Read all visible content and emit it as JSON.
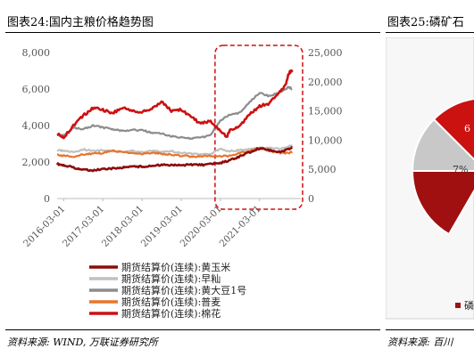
{
  "left_panel": {
    "title": "图表24:国内主粮价格趋势图",
    "source": "资料来源: WIND, 万联证券研究所"
  },
  "right_panel": {
    "title": "图表25:磷矿石",
    "source": "资料来源: 百川",
    "pie_labels": [
      "6",
      "7%"
    ],
    "legend_text": "磷"
  },
  "colors": {
    "corn": "#8b0d0d",
    "rice": "#c0c0c0",
    "soy": "#8c8c8c",
    "wheat": "#e8742c",
    "cotton": "#cc1111",
    "highlight": "#cc1111",
    "pie_dark": "#a01010",
    "pie_red": "#cc1111",
    "pie_gray": "#c8c8c8"
  },
  "chart_data": {
    "type": "line",
    "title": "",
    "y_left": {
      "min": 0,
      "max": 8000,
      "ticks": [
        "0",
        "2,000",
        "4,000",
        "6,000",
        "8,000"
      ]
    },
    "y_right": {
      "min": 0,
      "max": 25000,
      "ticks": [
        "0",
        "5,000",
        "10,000",
        "15,000",
        "20,000",
        "25,000"
      ]
    },
    "x_ticks": [
      "2016-03-01",
      "2017-03-01",
      "2018-03-01",
      "2019-03-01",
      "2020-03-01",
      "2021-03-01"
    ],
    "x_range": [
      "2016-01-01",
      "2022-01-31"
    ],
    "highlight_range": [
      "2020-03-01",
      "2022-01-31"
    ],
    "series": [
      {
        "name": "期货结算价(连续):黄玉米",
        "axis": "left",
        "color_key": "corn",
        "points": [
          [
            "2016-01",
            1900
          ],
          [
            "2016-03",
            1820
          ],
          [
            "2016-06",
            1700
          ],
          [
            "2016-09",
            1580
          ],
          [
            "2016-12",
            1550
          ],
          [
            "2017-03",
            1600
          ],
          [
            "2017-06",
            1650
          ],
          [
            "2017-09",
            1700
          ],
          [
            "2017-12",
            1760
          ],
          [
            "2018-03",
            1740
          ],
          [
            "2018-06",
            1780
          ],
          [
            "2018-09",
            1850
          ],
          [
            "2018-12",
            1830
          ],
          [
            "2019-03",
            1820
          ],
          [
            "2019-06",
            1870
          ],
          [
            "2019-09",
            1840
          ],
          [
            "2019-12",
            1880
          ],
          [
            "2020-03",
            1950
          ],
          [
            "2020-06",
            2100
          ],
          [
            "2020-09",
            2300
          ],
          [
            "2020-12",
            2550
          ],
          [
            "2021-03",
            2750
          ],
          [
            "2021-06",
            2650
          ],
          [
            "2021-09",
            2550
          ],
          [
            "2021-12",
            2700
          ],
          [
            "2022-01",
            2800
          ]
        ]
      },
      {
        "name": "期货结算价(连续):早籼",
        "axis": "left",
        "color_key": "rice",
        "points": [
          [
            "2016-01",
            2650
          ],
          [
            "2016-03",
            2600
          ],
          [
            "2016-06",
            2550
          ],
          [
            "2016-09",
            2700
          ],
          [
            "2016-12",
            2600
          ],
          [
            "2017-03",
            2650
          ],
          [
            "2017-06",
            2600
          ],
          [
            "2017-09",
            2550
          ],
          [
            "2017-12",
            2600
          ],
          [
            "2018-03",
            2550
          ],
          [
            "2018-06",
            2600
          ],
          [
            "2018-09",
            2550
          ],
          [
            "2018-12",
            2600
          ],
          [
            "2019-03",
            2500
          ],
          [
            "2019-06",
            2450
          ],
          [
            "2019-09",
            2400
          ],
          [
            "2019-12",
            2450
          ],
          [
            "2020-03",
            2700
          ],
          [
            "2020-06",
            2600
          ],
          [
            "2020-09",
            2650
          ],
          [
            "2020-12",
            2700
          ],
          [
            "2021-03",
            2750
          ],
          [
            "2021-06",
            2800
          ],
          [
            "2021-09",
            2700
          ],
          [
            "2021-12",
            2850
          ],
          [
            "2022-01",
            2900
          ]
        ]
      },
      {
        "name": "期货结算价(连续):黄大豆1号",
        "axis": "left",
        "color_key": "soy",
        "points": [
          [
            "2016-01",
            3500
          ],
          [
            "2016-03",
            3450
          ],
          [
            "2016-06",
            3900
          ],
          [
            "2016-09",
            3800
          ],
          [
            "2016-12",
            4000
          ],
          [
            "2017-03",
            3900
          ],
          [
            "2017-06",
            3800
          ],
          [
            "2017-09",
            3700
          ],
          [
            "2017-12",
            3750
          ],
          [
            "2018-03",
            3750
          ],
          [
            "2018-06",
            3600
          ],
          [
            "2018-09",
            3550
          ],
          [
            "2018-12",
            3400
          ],
          [
            "2019-03",
            3350
          ],
          [
            "2019-06",
            3300
          ],
          [
            "2019-09",
            3350
          ],
          [
            "2019-12",
            3450
          ],
          [
            "2020-03",
            4300
          ],
          [
            "2020-06",
            4600
          ],
          [
            "2020-09",
            4700
          ],
          [
            "2020-12",
            5300
          ],
          [
            "2021-03",
            5800
          ],
          [
            "2021-06",
            5600
          ],
          [
            "2021-09",
            5800
          ],
          [
            "2021-12",
            6100
          ],
          [
            "2022-01",
            6000
          ]
        ]
      },
      {
        "name": "期货结算价(连续):普麦",
        "axis": "left",
        "color_key": "wheat",
        "points": [
          [
            "2016-01",
            2400
          ],
          [
            "2016-03",
            2350
          ],
          [
            "2016-06",
            2300
          ],
          [
            "2016-09",
            2400
          ],
          [
            "2016-12",
            2450
          ],
          [
            "2017-03",
            2500
          ],
          [
            "2017-06",
            2600
          ],
          [
            "2017-09",
            2550
          ],
          [
            "2017-12",
            2500
          ],
          [
            "2018-03",
            2450
          ],
          [
            "2018-06",
            2500
          ],
          [
            "2018-09",
            2450
          ],
          [
            "2018-12",
            2400
          ],
          [
            "2019-03",
            2350
          ],
          [
            "2019-06",
            2300
          ],
          [
            "2019-09",
            2300
          ],
          [
            "2019-12",
            2350
          ],
          [
            "2020-03",
            2300
          ],
          [
            "2020-06",
            2350
          ],
          [
            "2020-09",
            2500
          ],
          [
            "2020-12",
            2600
          ],
          [
            "2021-03",
            2800
          ],
          [
            "2021-06",
            2600
          ],
          [
            "2021-09",
            2500
          ],
          [
            "2021-12",
            2500
          ],
          [
            "2022-01",
            2550
          ]
        ]
      },
      {
        "name": "期货结算价(连续):棉花",
        "axis": "right",
        "color_key": "cotton",
        "points": [
          [
            "2016-01",
            11000
          ],
          [
            "2016-03",
            10500
          ],
          [
            "2016-06",
            12500
          ],
          [
            "2016-09",
            14200
          ],
          [
            "2016-12",
            15500
          ],
          [
            "2017-03",
            15200
          ],
          [
            "2017-06",
            14600
          ],
          [
            "2017-09",
            15500
          ],
          [
            "2017-12",
            15000
          ],
          [
            "2018-03",
            14800
          ],
          [
            "2018-06",
            15300
          ],
          [
            "2018-09",
            16500
          ],
          [
            "2018-12",
            15000
          ],
          [
            "2019-03",
            15300
          ],
          [
            "2019-06",
            14000
          ],
          [
            "2019-09",
            12800
          ],
          [
            "2019-12",
            13200
          ],
          [
            "2020-03",
            11500
          ],
          [
            "2020-05",
            10500
          ],
          [
            "2020-06",
            11800
          ],
          [
            "2020-09",
            12500
          ],
          [
            "2020-12",
            14400
          ],
          [
            "2021-03",
            15800
          ],
          [
            "2021-06",
            16300
          ],
          [
            "2021-09",
            18200
          ],
          [
            "2021-11",
            19500
          ],
          [
            "2021-12",
            21500
          ],
          [
            "2022-01",
            22000
          ]
        ]
      }
    ]
  }
}
